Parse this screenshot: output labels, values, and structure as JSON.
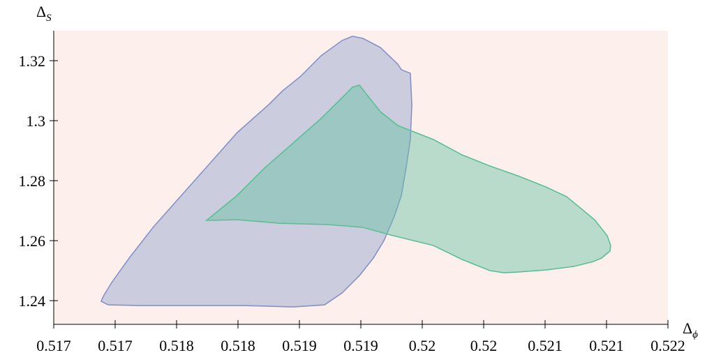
{
  "chart_data": {
    "type": "region",
    "x_label": {
      "base": "Δ",
      "sub": "ϕ"
    },
    "y_label": {
      "base": "Δ",
      "sub": "S"
    },
    "background": "#fdf0ec",
    "xlim": [
      0.517,
      0.522
    ],
    "ylim": [
      1.2321,
      1.33
    ],
    "xticks": [
      0.517,
      {
        "value": 0.5175,
        "label": "0.517"
      },
      0.518,
      {
        "value": 0.5185,
        "label": "0.518"
      },
      0.519,
      {
        "value": 0.5195,
        "label": "0.519"
      },
      {
        "value": 0.52,
        "label": "0.52"
      },
      {
        "value": 0.5205,
        "label": "0.52"
      },
      0.521,
      {
        "value": 0.5215,
        "label": "0.521"
      },
      0.522
    ],
    "yticks": [
      1.24,
      1.26,
      1.28,
      {
        "value": 1.3,
        "label": "1.3"
      },
      1.32
    ],
    "series": [
      {
        "color": "#8da0cb",
        "stroke": "#8592c6",
        "x": [
          0.517386,
          0.517403,
          0.517472,
          0.517614,
          0.517813,
          0.51804,
          0.518267,
          0.518494,
          0.51875,
          0.518864,
          0.519006,
          0.519176,
          0.519347,
          0.519432,
          0.519517,
          0.519659,
          0.519801,
          0.51983,
          0.519903,
          0.519915,
          0.519903,
          0.519869,
          0.51983,
          0.519773,
          0.519688,
          0.519602,
          0.519489,
          0.519347,
          0.519205,
          0.518949,
          0.518551,
          0.517983,
          0.517699,
          0.517443
        ],
        "y": [
          1.23977,
          1.2414,
          1.24605,
          1.25419,
          1.26465,
          1.27512,
          1.28558,
          1.29605,
          1.30535,
          1.31,
          1.31465,
          1.32163,
          1.32674,
          1.32814,
          1.32744,
          1.32442,
          1.31884,
          1.31698,
          1.31581,
          1.30535,
          1.29372,
          1.28442,
          1.27512,
          1.26814,
          1.26,
          1.25419,
          1.24837,
          1.24256,
          1.2386,
          1.23791,
          1.23837,
          1.23837,
          1.23837,
          1.2386
        ]
      },
      {
        "color": "#66c2a5",
        "stroke": "#5cbf94",
        "x": [
          0.518244,
          0.518494,
          0.518722,
          0.518949,
          0.519176,
          0.519347,
          0.519432,
          0.519489,
          0.519545,
          0.519659,
          0.519801,
          0.520091,
          0.520324,
          0.520551,
          0.520778,
          0.521006,
          0.521176,
          0.521403,
          0.521506,
          0.521534,
          0.521528,
          0.52146,
          0.521392,
          0.521233,
          0.521006,
          0.520778,
          0.520665,
          0.520551,
          0.520324,
          0.520091,
          0.519744,
          0.519517,
          0.519233,
          0.518835,
          0.518494
        ],
        "y": [
          1.26674,
          1.27512,
          1.28442,
          1.29256,
          1.3007,
          1.30767,
          1.31116,
          1.31186,
          1.30884,
          1.30302,
          1.29837,
          1.29372,
          1.2886,
          1.28488,
          1.28163,
          1.27791,
          1.27465,
          1.26698,
          1.26163,
          1.25837,
          1.25651,
          1.25419,
          1.25302,
          1.2514,
          1.25023,
          1.24953,
          1.2493,
          1.25,
          1.25372,
          1.25837,
          1.26186,
          1.26442,
          1.26535,
          1.26581,
          1.26698
        ]
      }
    ]
  }
}
